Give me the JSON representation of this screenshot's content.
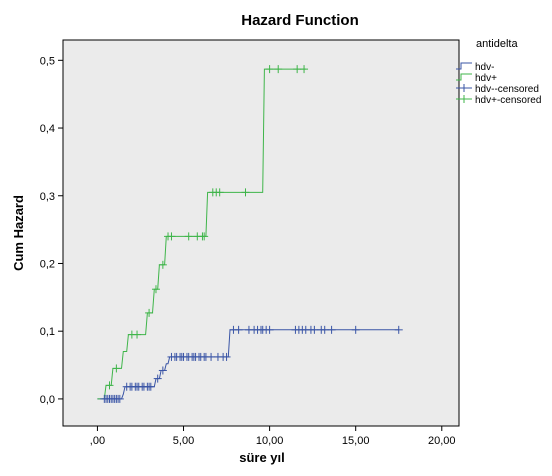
{
  "chart_data": {
    "type": "line",
    "title": "Hazard Function",
    "xlabel": "süre yıl",
    "ylabel": "Cum Hazard",
    "xlim": [
      -2.0,
      21.0
    ],
    "ylim": [
      -0.04,
      0.53
    ],
    "x_ticks": [
      0,
      5,
      10,
      15,
      20
    ],
    "x_tick_labels": [
      ",00",
      "5,00",
      "10,00",
      "15,00",
      "20,00"
    ],
    "y_ticks": [
      0,
      0.1,
      0.2,
      0.3,
      0.4,
      0.5
    ],
    "y_tick_labels": [
      "0,0",
      "0,1",
      "0,2",
      "0,3",
      "0,4",
      "0,5"
    ],
    "legend": {
      "title": "antidelta",
      "position": "right",
      "entries": [
        "hdv-",
        "hdv+",
        "hdv--censored",
        "hdv+-censored"
      ]
    },
    "colors": {
      "hdv_minus": "#3a55a6",
      "hdv_plus": "#3fb54a",
      "plot_bg": "#ebebeb"
    },
    "series": [
      {
        "name": "hdv-",
        "color": "#3a55a6",
        "steps": [
          [
            0.0,
            0.0
          ],
          [
            1.4,
            0.0
          ],
          [
            1.5,
            0.007
          ],
          [
            1.6,
            0.018
          ],
          [
            3.3,
            0.018
          ],
          [
            3.4,
            0.03
          ],
          [
            3.6,
            0.03
          ],
          [
            3.7,
            0.042
          ],
          [
            3.9,
            0.042
          ],
          [
            4.0,
            0.052
          ],
          [
            4.1,
            0.052
          ],
          [
            4.2,
            0.062
          ],
          [
            7.6,
            0.062
          ],
          [
            7.7,
            0.102
          ],
          [
            17.5,
            0.102
          ]
        ]
      },
      {
        "name": "hdv+",
        "color": "#3fb54a",
        "steps": [
          [
            0.0,
            0.0
          ],
          [
            0.4,
            0.0
          ],
          [
            0.5,
            0.02
          ],
          [
            0.8,
            0.02
          ],
          [
            0.9,
            0.045
          ],
          [
            1.4,
            0.045
          ],
          [
            1.5,
            0.07
          ],
          [
            1.7,
            0.07
          ],
          [
            1.8,
            0.095
          ],
          [
            2.8,
            0.095
          ],
          [
            2.9,
            0.127
          ],
          [
            3.2,
            0.127
          ],
          [
            3.3,
            0.162
          ],
          [
            3.5,
            0.162
          ],
          [
            3.6,
            0.198
          ],
          [
            3.9,
            0.198
          ],
          [
            4.0,
            0.24
          ],
          [
            6.3,
            0.24
          ],
          [
            6.4,
            0.305
          ],
          [
            9.6,
            0.305
          ],
          [
            9.7,
            0.487
          ],
          [
            12.1,
            0.487
          ]
        ]
      },
      {
        "name": "hdv--censored",
        "color": "#3a55a6",
        "points": [
          [
            0.4,
            0.0
          ],
          [
            0.5,
            0.0
          ],
          [
            0.6,
            0.0
          ],
          [
            0.7,
            0.0
          ],
          [
            0.8,
            0.0
          ],
          [
            0.9,
            0.0
          ],
          [
            1.0,
            0.0
          ],
          [
            1.1,
            0.0
          ],
          [
            1.2,
            0.0
          ],
          [
            1.3,
            0.0
          ],
          [
            1.7,
            0.018
          ],
          [
            1.9,
            0.018
          ],
          [
            2.0,
            0.018
          ],
          [
            2.2,
            0.018
          ],
          [
            2.3,
            0.018
          ],
          [
            2.4,
            0.018
          ],
          [
            2.6,
            0.018
          ],
          [
            2.7,
            0.018
          ],
          [
            2.9,
            0.018
          ],
          [
            3.0,
            0.018
          ],
          [
            3.1,
            0.018
          ],
          [
            3.5,
            0.03
          ],
          [
            3.8,
            0.042
          ],
          [
            4.3,
            0.062
          ],
          [
            4.5,
            0.062
          ],
          [
            4.6,
            0.062
          ],
          [
            4.8,
            0.062
          ],
          [
            4.9,
            0.062
          ],
          [
            5.0,
            0.062
          ],
          [
            5.2,
            0.062
          ],
          [
            5.3,
            0.062
          ],
          [
            5.5,
            0.062
          ],
          [
            5.6,
            0.062
          ],
          [
            5.7,
            0.062
          ],
          [
            5.9,
            0.062
          ],
          [
            6.0,
            0.062
          ],
          [
            6.2,
            0.062
          ],
          [
            6.3,
            0.062
          ],
          [
            6.6,
            0.062
          ],
          [
            7.0,
            0.062
          ],
          [
            7.3,
            0.062
          ],
          [
            7.5,
            0.062
          ],
          [
            7.9,
            0.102
          ],
          [
            8.2,
            0.102
          ],
          [
            8.8,
            0.102
          ],
          [
            9.1,
            0.102
          ],
          [
            9.3,
            0.102
          ],
          [
            9.5,
            0.102
          ],
          [
            9.6,
            0.102
          ],
          [
            9.8,
            0.102
          ],
          [
            10.0,
            0.102
          ],
          [
            11.5,
            0.102
          ],
          [
            11.7,
            0.102
          ],
          [
            11.9,
            0.102
          ],
          [
            12.1,
            0.102
          ],
          [
            12.4,
            0.102
          ],
          [
            12.6,
            0.102
          ],
          [
            13.0,
            0.102
          ],
          [
            13.2,
            0.102
          ],
          [
            13.6,
            0.102
          ],
          [
            15.0,
            0.102
          ],
          [
            17.5,
            0.102
          ]
        ]
      },
      {
        "name": "hdv+-censored",
        "color": "#3fb54a",
        "points": [
          [
            0.7,
            0.02
          ],
          [
            1.1,
            0.045
          ],
          [
            2.0,
            0.095
          ],
          [
            2.3,
            0.095
          ],
          [
            3.0,
            0.127
          ],
          [
            3.4,
            0.162
          ],
          [
            3.8,
            0.198
          ],
          [
            4.1,
            0.24
          ],
          [
            4.3,
            0.24
          ],
          [
            5.3,
            0.24
          ],
          [
            5.8,
            0.24
          ],
          [
            6.1,
            0.24
          ],
          [
            6.2,
            0.24
          ],
          [
            6.7,
            0.305
          ],
          [
            6.9,
            0.305
          ],
          [
            7.1,
            0.305
          ],
          [
            8.6,
            0.305
          ],
          [
            10.0,
            0.487
          ],
          [
            10.5,
            0.487
          ],
          [
            11.6,
            0.487
          ],
          [
            12.0,
            0.487
          ]
        ]
      }
    ]
  }
}
